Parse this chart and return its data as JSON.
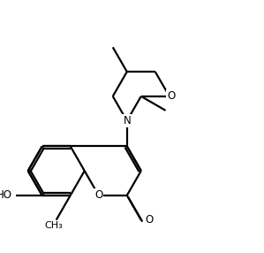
{
  "background_color": "#ffffff",
  "line_color": "#000000",
  "line_width": 1.6,
  "font_size": 8.5,
  "figsize": [
    2.99,
    2.86
  ],
  "dpi": 100,
  "xlim": [
    0,
    10
  ],
  "ylim": [
    0,
    10
  ]
}
